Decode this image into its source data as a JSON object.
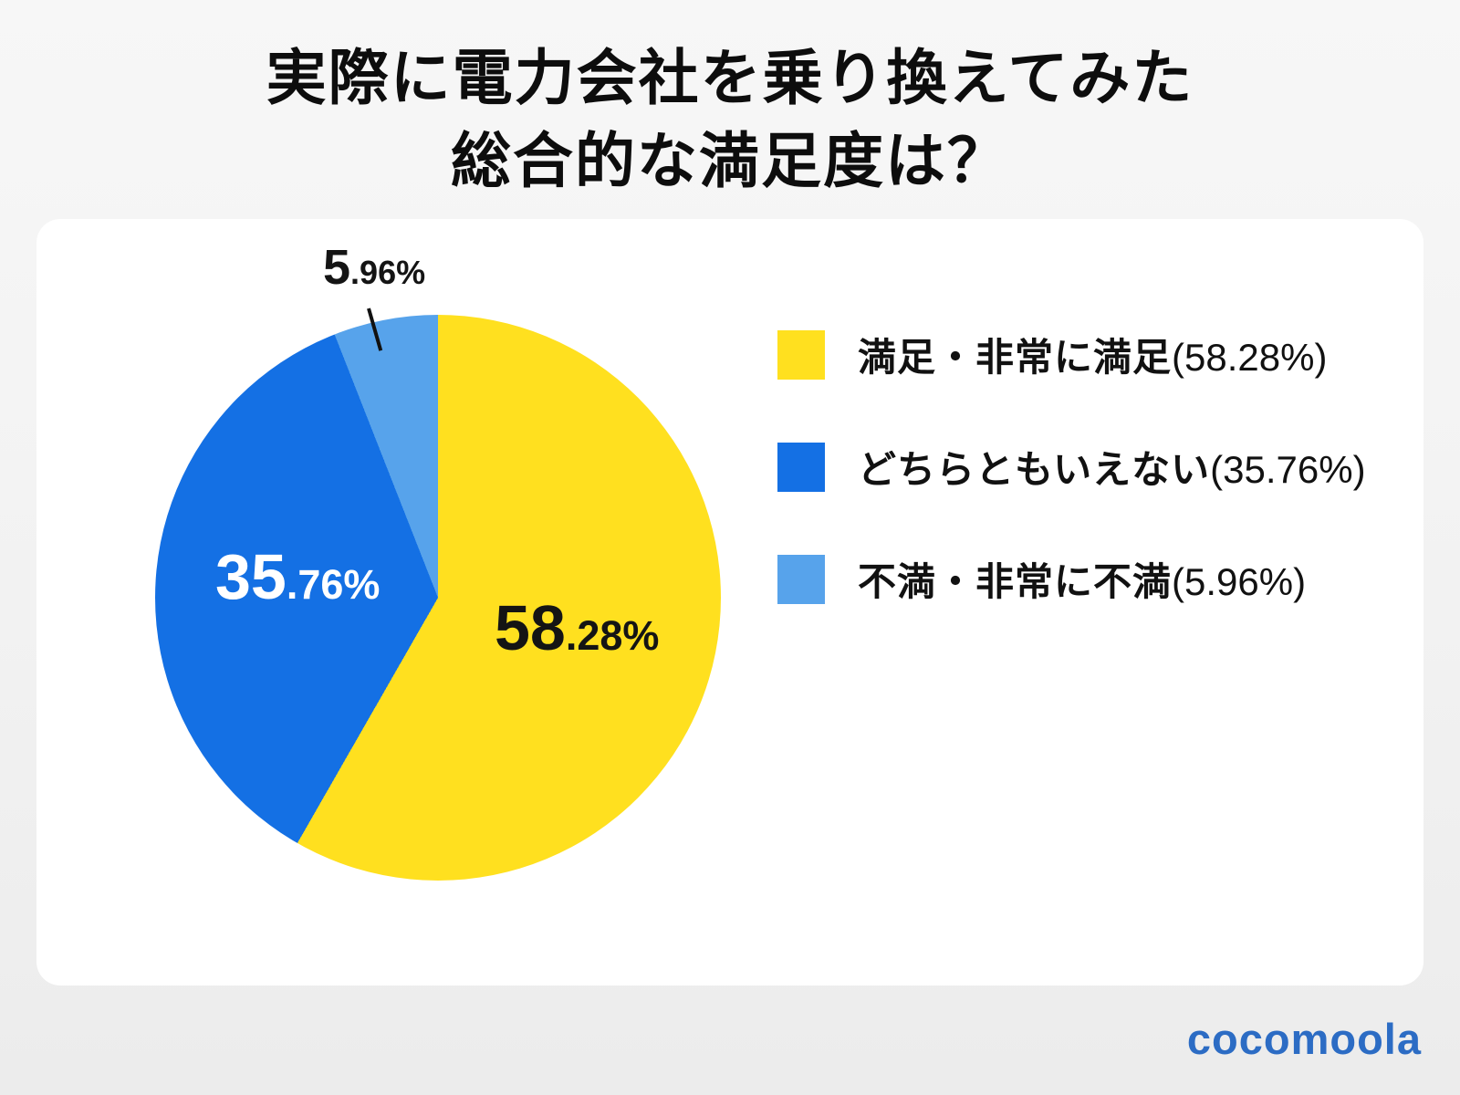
{
  "title": {
    "line1": "実際に電力会社を乗り換えてみた",
    "line2": "総合的な満足度は？"
  },
  "chart_data": {
    "type": "pie",
    "title": "実際に電力会社を乗り換えてみた総合的な満足度は？",
    "unit": "%",
    "start_angle_deg": 0,
    "direction": "clockwise",
    "legend_position": "right",
    "slices": [
      {
        "label": "満足・非常に満足",
        "value": 58.28,
        "color": "#ffe01f"
      },
      {
        "label": "どちらともいえない",
        "value": 35.76,
        "color": "#1470e4"
      },
      {
        "label": "不満・非常に不満",
        "value": 5.96,
        "color": "#57a3eb"
      }
    ]
  },
  "pie_labels": {
    "yellow": {
      "int": "58",
      "frac": ".28%"
    },
    "blue": {
      "int": "35",
      "frac": ".76%"
    },
    "lightblue": {
      "int": "5",
      "frac": ".96%"
    }
  },
  "legend": {
    "items": [
      {
        "label": "満足・非常に満足",
        "value_text": "(58.28%)",
        "color": "#ffe01f"
      },
      {
        "label": "どちらともいえない",
        "value_text": "(35.76%)",
        "color": "#1470e4"
      },
      {
        "label": "不満・非常に不満",
        "value_text": "(5.96%)",
        "color": "#57a3eb"
      }
    ]
  },
  "footer": {
    "logo_text": "cocomoola",
    "logo_color": "#2c6cc4"
  },
  "colors": {
    "background_top": "#f7f7f7",
    "background_bottom": "#ececec",
    "card": "#ffffff",
    "title_text": "#0d0d0d"
  }
}
